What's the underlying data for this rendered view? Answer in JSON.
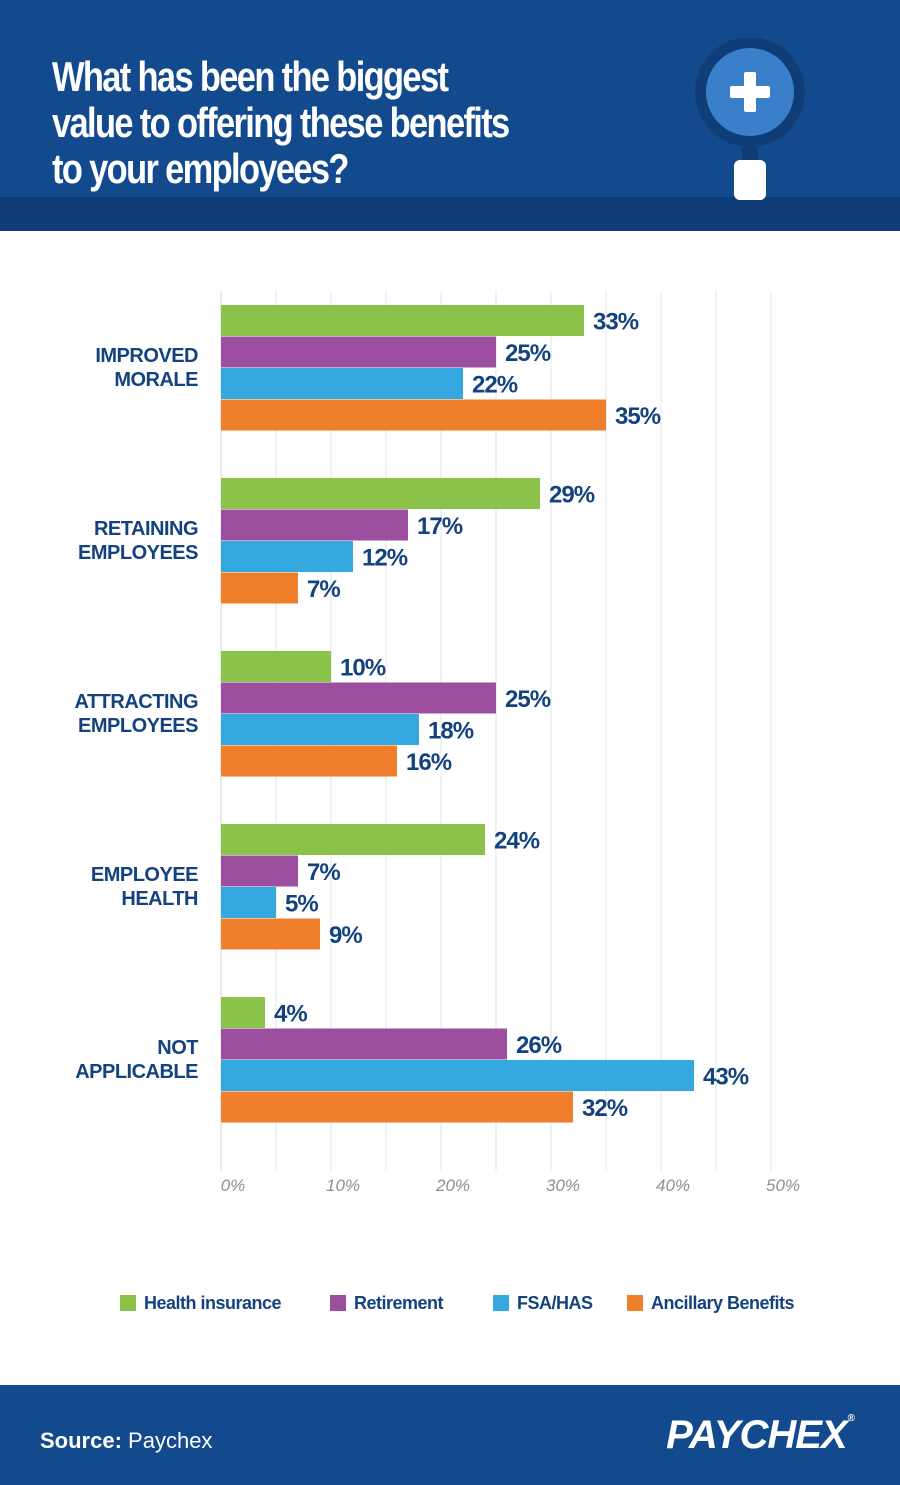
{
  "header": {
    "title": "What has been the biggest value to offering these benefits to your employees?",
    "icon": "magnifier-plus-icon"
  },
  "colors": {
    "header_bg": "#134a8e",
    "health_insurance": "#8bc34a",
    "retirement": "#9b4f9e",
    "fsa_has": "#35a8e0",
    "ancillary": "#f07f2b",
    "label_text": "#14427f"
  },
  "chart_data": {
    "type": "bar",
    "orientation": "horizontal",
    "title": "What has been the biggest value to offering these benefits to your employees?",
    "categories": [
      "Improved Morale",
      "Retaining Employees",
      "Attracting Employees",
      "Employee Health",
      "Not Applicable"
    ],
    "category_lines": [
      [
        "Improved",
        "Morale"
      ],
      [
        "Retaining",
        "Employees"
      ],
      [
        "Attracting",
        "Employees"
      ],
      [
        "Employee",
        "Health"
      ],
      [
        "Not",
        "Applicable"
      ]
    ],
    "series": [
      {
        "name": "Health insurance",
        "color": "#8bc34a",
        "values": [
          33,
          29,
          10,
          24,
          4
        ]
      },
      {
        "name": "Retirement",
        "color": "#9b4f9e",
        "values": [
          25,
          17,
          25,
          7,
          26
        ]
      },
      {
        "name": "FSA/HAS",
        "color": "#35a8e0",
        "values": [
          22,
          12,
          18,
          5,
          43
        ]
      },
      {
        "name": "Ancillary Benefits",
        "color": "#f07f2b",
        "values": [
          35,
          7,
          16,
          9,
          32
        ]
      }
    ],
    "value_suffix": "%",
    "xlim": [
      0,
      50
    ],
    "xticks": [
      "0%",
      "10%",
      "20%",
      "30%",
      "40%",
      "50%"
    ],
    "grid": true,
    "legend_position": "bottom"
  },
  "legend": {
    "items": [
      {
        "label": "Health insurance",
        "color": "#8bc34a"
      },
      {
        "label": "Retirement",
        "color": "#9b4f9e"
      },
      {
        "label": "FSA/HAS",
        "color": "#35a8e0"
      },
      {
        "label": "Ancillary Benefits",
        "color": "#f07f2b"
      }
    ]
  },
  "footer": {
    "source_label": "Source:",
    "source_value": "Paychex",
    "logo_text": "PAYCHEX",
    "logo_mark": "®"
  }
}
